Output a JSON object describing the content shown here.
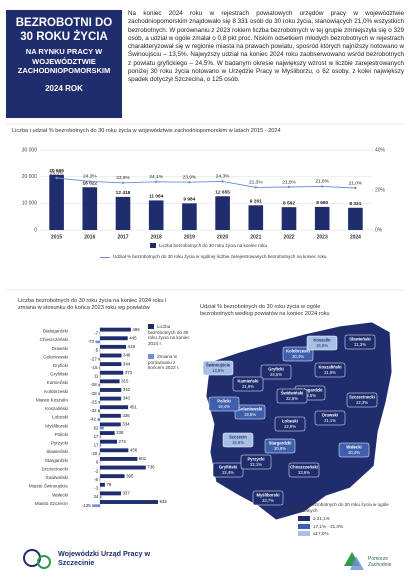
{
  "header": {
    "title": "BEZROBOTNI DO 30 ROKU ŻYCIA",
    "subtitle": "NA RYNKU PRACY W WOJEWÓDZTWIE ZACHODNIOPOMORSKIM",
    "year": "2024 ROK"
  },
  "intro": "Na koniec 2024 roku w rejestrach powiatowych urzędów pracy w województwie zachodniopomorskim znajdowało się 8 331 osób do 30 roku życia, stanowiących 21,0% wszystkich bezrobotnych. W porównaniu z 2023 rokiem liczba bezrobotnych w tej grupie zmniejszyła się o 329 osób, a udział w ogóle zmalał o 0,8 pkt proc. Niskim odsetkiem młodych bezrobotnych w rejestrach charakteryzował się w regionie miasta na prawach powiatu, spośród których najniższy notowano w Świnoujściu – 13,5%. Najwyższy udział na koniec 2024 roku zaobserwowano wśród bezrobotnych z powiatu gryfickiego – 24,5%. W badanym okresie największy wzrost w liczbie zarejestrowanych poniżej 30 roku życia notowano w Urzędzie Pracy w Myśliborzu, o 62 osoby, z kolei największy spadek dotyczył Szczecina, o 125 osób.",
  "chart_data": [
    {
      "type": "bar",
      "title": "Liczba i udział % bezrobotnych do 30 roku życia w województwie zachodniopomorskim w latach 2015 - 2024",
      "categories": [
        "2015",
        "2016",
        "2017",
        "2018",
        "2019",
        "2020",
        "2021",
        "2022",
        "2023",
        "2024"
      ],
      "series": [
        {
          "name": "Liczba bezrobotnych do 30 roku życia na koniec roku",
          "type": "bar",
          "axis": "y",
          "color": "#1f2d6e",
          "values": [
            20665,
            16022,
            12418,
            11084,
            9984,
            12655,
            9261,
            8562,
            8660,
            8331
          ],
          "value_labels": [
            "20 665",
            "16 022",
            "12 418",
            "11 084",
            "9 984",
            "12 655",
            "9 261",
            "8 562",
            "8 660",
            "8 331"
          ]
        },
        {
          "name": "Udział % bezrobotnych do 30 roku życia w ogólnej liczbie zarejestrowanych bezrobotnych na koniec roku",
          "type": "line",
          "axis": "y2",
          "color": "#6b8fd1",
          "values": [
            26.0,
            24.3,
            23.6,
            24.1,
            23.9,
            24.3,
            21.3,
            21.5,
            21.8,
            21.0
          ],
          "value_labels": [
            "26,0%",
            "24,3%",
            "23,6%",
            "24,1%",
            "23,9%",
            "24,3%",
            "21,3%",
            "21,5%",
            "21,8%",
            "21,0%"
          ]
        }
      ],
      "ylim": [
        0,
        30000
      ],
      "yticks": [
        0,
        {
          "value": 10000,
          "label": "10 000"
        },
        {
          "value": 20000,
          "label": "20 000"
        },
        {
          "value": 30000,
          "label": "30 000"
        }
      ],
      "y2lim": [
        0,
        40
      ],
      "y2ticks": [
        {
          "value": 0,
          "label": "0%"
        },
        {
          "value": 20,
          "label": "20%"
        },
        {
          "value": 40,
          "label": "40%"
        }
      ],
      "grid": true
    },
    {
      "type": "hbar",
      "title": "Liczba bezrobotnych do 30 roku życia na koniec 2024 roku i zmiana w stosunku do końca 2023 roku wg powiatów",
      "categories": [
        "Białogardzki",
        "Choszczeński",
        "Drawski",
        "Goleniowski",
        "Gryficki",
        "Gryfiński",
        "Kamieński",
        "Kołobrzeski",
        "Miasto Koszalin",
        "Koszaliński",
        "Łobeski",
        "Myśliborski",
        "Policki",
        "Pyrzycki",
        "Sławieński",
        "Stargardzki",
        "Szczecinecki",
        "Świdwiński",
        "Miasto Świnoujście",
        "Wałecki",
        "Miasto Szczecin"
      ],
      "series": [
        {
          "name": "Liczba bezrobotnych do 30 roku życia na koniec 2024 r.",
          "color": "#1f2d6e",
          "values": [
            496,
            445,
            419,
            346,
            344,
            373,
            315,
            342,
            340,
            451,
            336,
            334,
            235,
            274,
            456,
            601,
            736,
            395,
            79,
            337,
            932
          ]
        },
        {
          "name": "Zmiana w porównaniu z końcem 2023 r.",
          "color": "#6b8fd1",
          "values": [
            -7,
            -73,
            -5,
            -27,
            -15,
            11,
            -28,
            -28,
            -25,
            -32,
            -42,
            62,
            17,
            17,
            -20,
            6,
            -2,
            -8,
            -3,
            24,
            -125
          ]
        }
      ]
    },
    {
      "type": "choropleth",
      "title": "Udział % bezrobotnych do 30 roku życia w ogóle bezrobotnych według powiatów na koniec 2024 roku",
      "categories": [
        "Białogardzki",
        "Choszczeński",
        "Drawski",
        "Goleniowski",
        "Gryficki",
        "Gryfiński",
        "Kamieński",
        "Kołobrzeski",
        "Koszalin",
        "Koszaliński",
        "Łobeski",
        "Myśliborski",
        "Policki",
        "Pyrzycki",
        "Sławieński",
        "Stargardzki",
        "Szczecinecki",
        "Świdwiński",
        "Świnoujście",
        "Wałecki",
        "Szczecin"
      ],
      "values": [
        23.5,
        23.6,
        21.1,
        19.8,
        24.5,
        22.4,
        21.9,
        20.4,
        16.9,
        21.9,
        22.9,
        23.7,
        19.4,
        22.1,
        21.3,
        20.8,
        22.3,
        22.8,
        13.5,
        20.4,
        15.9
      ],
      "value_labels": [
        "23,5%",
        "23,6%",
        "21,1%",
        "19,8%",
        "24,5%",
        "22,4%",
        "21,9%",
        "20,4%",
        "16,9%",
        "21,9%",
        "22,9%",
        "23,7%",
        "19,4%",
        "22,1%",
        "21,3%",
        "20,8%",
        "22,3%",
        "22,8%",
        "13,5%",
        "20,4%",
        "15,9%"
      ],
      "legend_title": "Udział % bezrobotnych do 30 roku życia w ogóle bezrobotnych",
      "classes": [
        {
          "min": 21.1,
          "label": "≥ 21,1%",
          "color": "#1f2d6e"
        },
        {
          "min": 17.1,
          "max": 21.0,
          "label": "17,1% - 21,0%",
          "color": "#3f5fae"
        },
        {
          "max": 17.0,
          "label": "≤17,0%",
          "color": "#a9c0e6"
        }
      ]
    }
  ],
  "footer": {
    "institution": "Wojewódzki Urząd Pracy w Szczecinie",
    "brand": "Pomorze Zachodnie"
  }
}
